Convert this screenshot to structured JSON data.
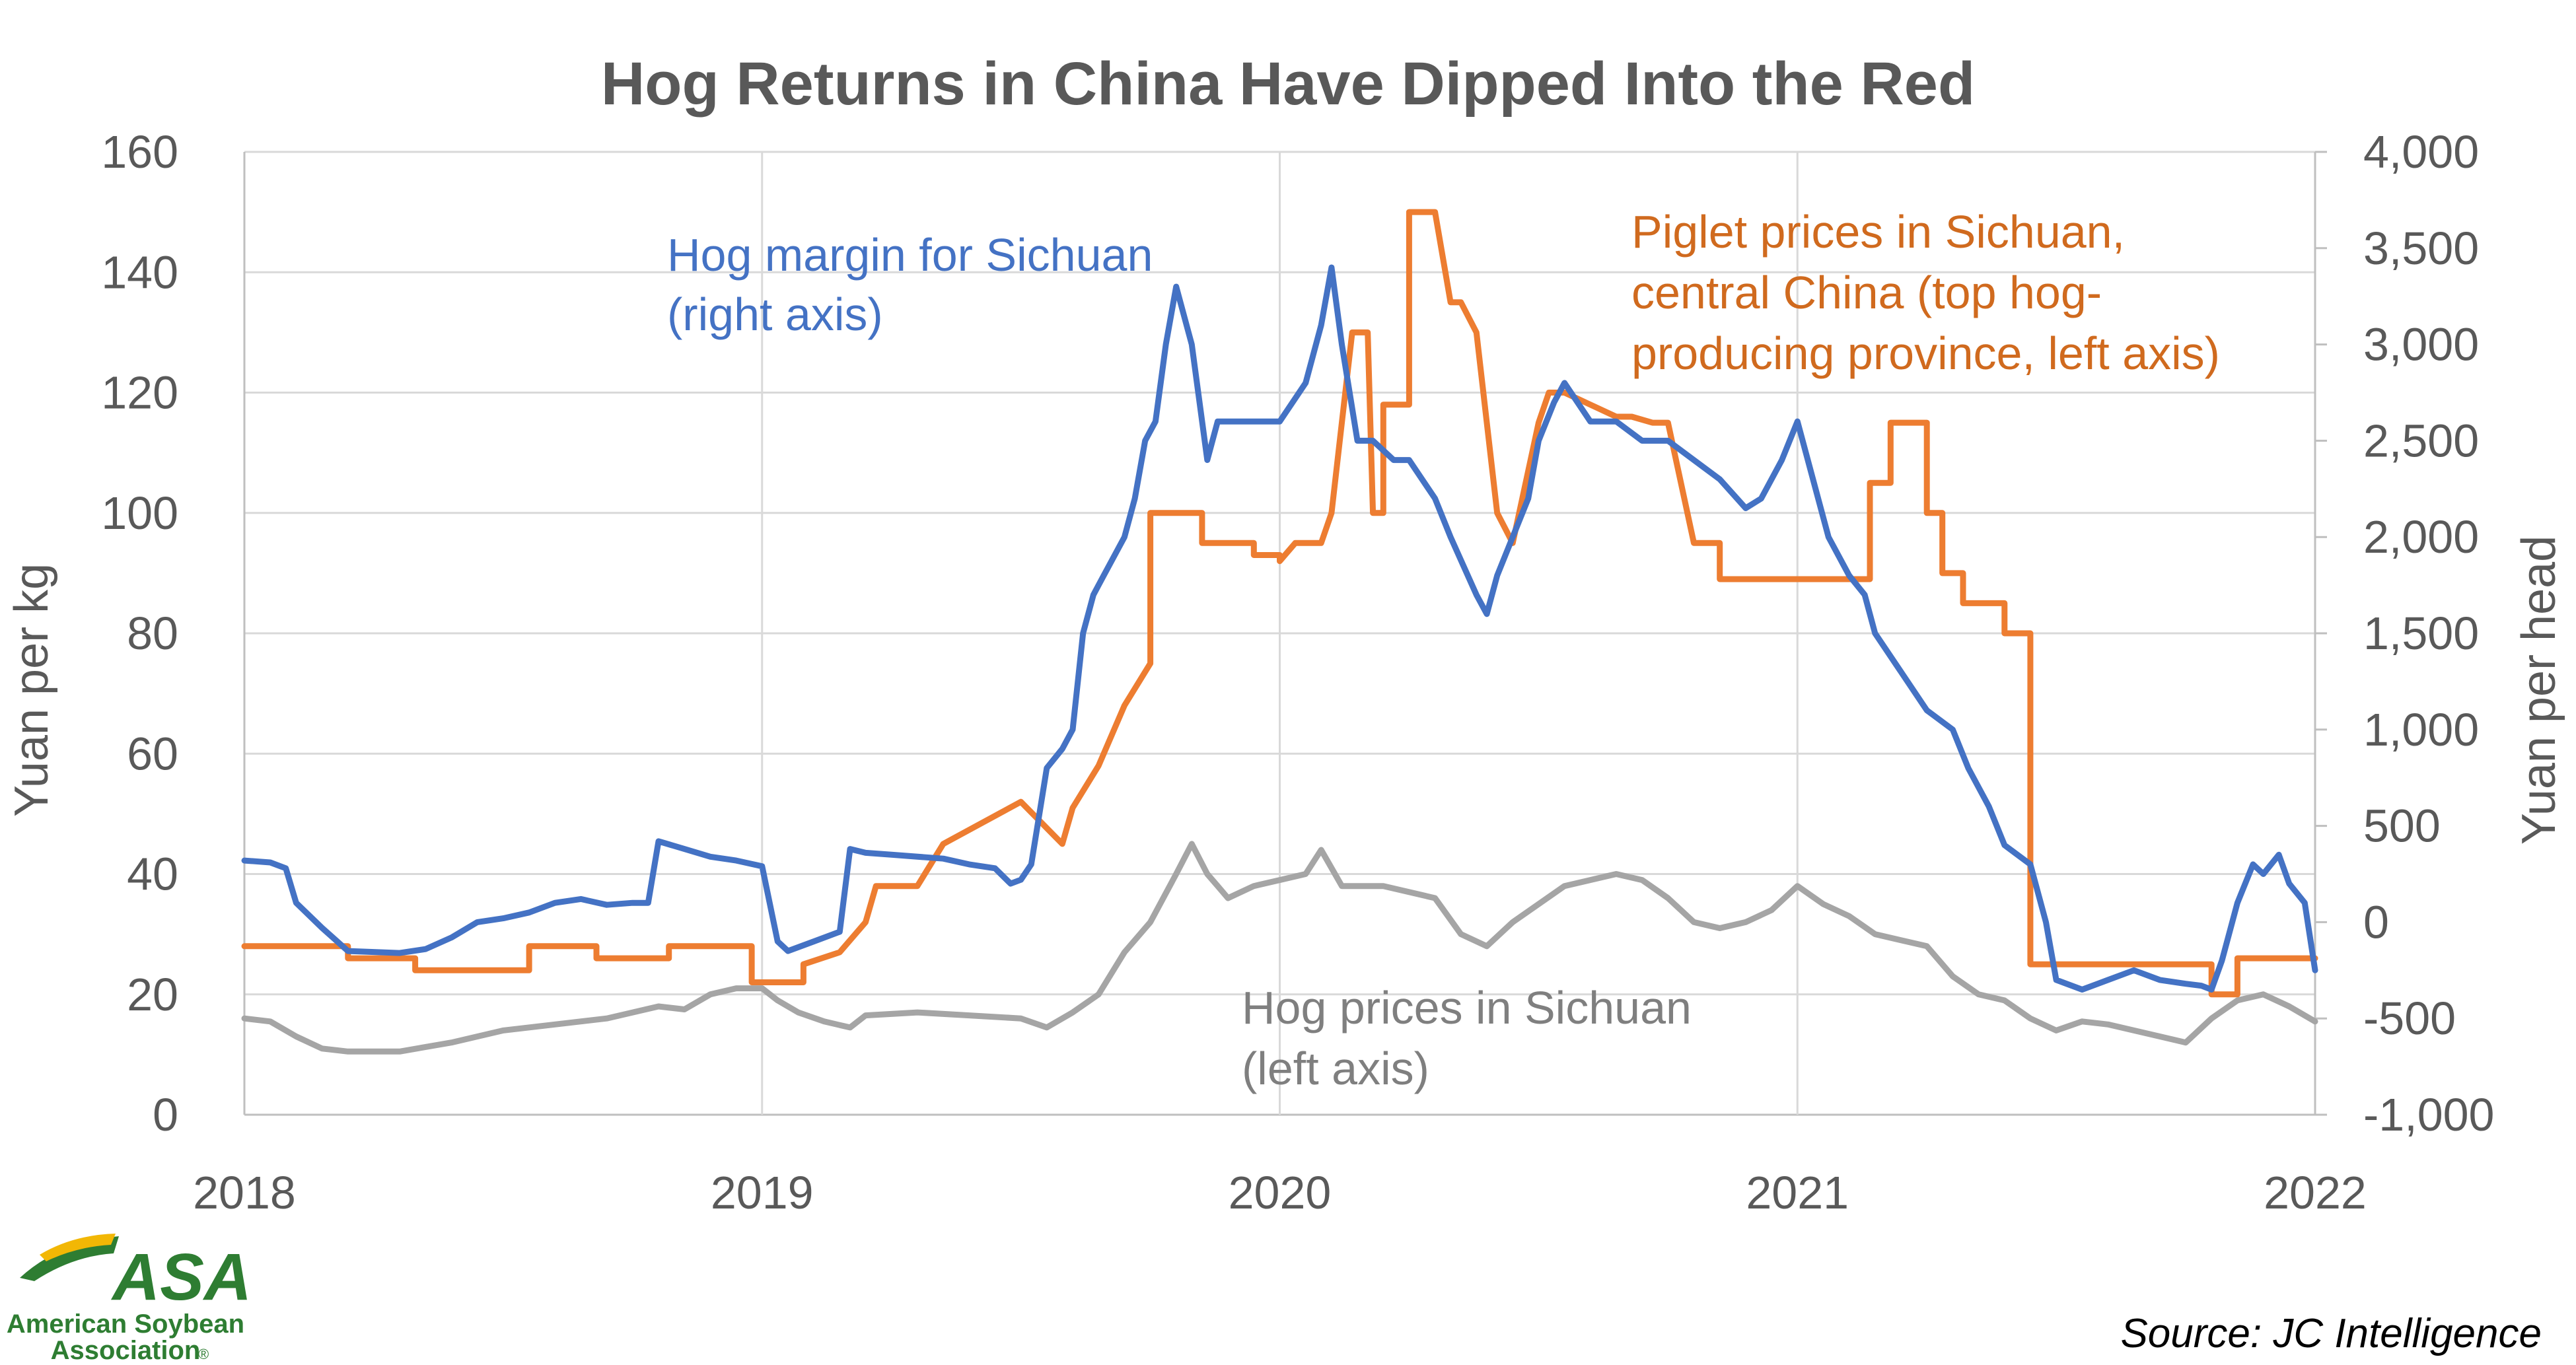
{
  "chart_data": {
    "type": "line",
    "title": "Hog Returns in China Have Dipped Into the Red",
    "xlabel": "",
    "ylabel_left": "Yuan per kg",
    "ylabel_right": "Yuan per head",
    "xlim": [
      2018,
      2022
    ],
    "ylim_left": [
      0,
      160
    ],
    "ylim_right": [
      -1000,
      4000
    ],
    "x_ticks": [
      "2018",
      "2019",
      "2020",
      "2021",
      "2022"
    ],
    "y_ticks_left": [
      "0",
      "20",
      "40",
      "60",
      "80",
      "100",
      "120",
      "140",
      "160"
    ],
    "y_ticks_right": [
      "-1,000",
      "-500",
      "0",
      "500",
      "1,000",
      "1,500",
      "2,000",
      "2,500",
      "3,000",
      "3,500",
      "4,000"
    ],
    "grid": true,
    "series": [
      {
        "name": "Hog prices in Sichuan (left axis)",
        "axis": "left",
        "color": "#A5A5A5",
        "x": [
          2018.0,
          2018.05,
          2018.1,
          2018.15,
          2018.2,
          2018.3,
          2018.4,
          2018.5,
          2018.6,
          2018.7,
          2018.75,
          2018.8,
          2018.85,
          2018.9,
          2018.95,
          2019.0,
          2019.03,
          2019.07,
          2019.12,
          2019.17,
          2019.2,
          2019.3,
          2019.4,
          2019.5,
          2019.55,
          2019.6,
          2019.65,
          2019.7,
          2019.75,
          2019.8,
          2019.83,
          2019.86,
          2019.88,
          2019.9,
          2019.95,
          2020.0,
          2020.05,
          2020.08,
          2020.1,
          2020.12,
          2020.15,
          2020.2,
          2020.3,
          2020.35,
          2020.4,
          2020.45,
          2020.5,
          2020.55,
          2020.6,
          2020.65,
          2020.7,
          2020.75,
          2020.8,
          2020.85,
          2020.9,
          2020.95,
          2021.0,
          2021.05,
          2021.1,
          2021.15,
          2021.2,
          2021.25,
          2021.3,
          2021.35,
          2021.4,
          2021.45,
          2021.5,
          2021.55,
          2021.6,
          2021.65,
          2021.7,
          2021.75,
          2021.8,
          2021.85,
          2021.9,
          2021.95,
          2022.0
        ],
        "values": [
          16,
          15.5,
          13,
          11,
          10.5,
          10.5,
          12,
          14,
          15,
          16,
          17,
          18,
          17.5,
          20,
          21,
          21,
          19,
          17,
          15.5,
          14.5,
          16.5,
          17,
          16.5,
          16,
          14.5,
          17,
          20,
          27,
          32,
          40,
          45,
          40,
          38,
          36,
          38,
          39,
          40,
          44,
          41,
          38,
          38,
          38,
          36,
          30,
          28,
          32,
          35,
          38,
          39,
          40,
          39,
          36,
          32,
          31,
          32,
          34,
          38,
          35,
          33,
          30,
          29,
          28,
          23,
          20,
          19,
          16,
          14,
          15.5,
          15,
          14,
          13,
          12,
          16,
          19,
          20,
          18,
          15.5
        ]
      },
      {
        "name": "Piglet prices in Sichuan, central China (top hog-producing province, left axis)",
        "axis": "left",
        "color": "#ED7D31",
        "x": [
          2018.0,
          2018.2,
          2018.2,
          2018.33,
          2018.33,
          2018.55,
          2018.55,
          2018.68,
          2018.68,
          2018.82,
          2018.82,
          2018.98,
          2018.98,
          2019.08,
          2019.08,
          2019.15,
          2019.2,
          2019.22,
          2019.3,
          2019.35,
          2019.35,
          2019.5,
          2019.5,
          2019.58,
          2019.58,
          2019.6,
          2019.6,
          2019.65,
          2019.65,
          2019.7,
          2019.75,
          2019.75,
          2019.85,
          2019.85,
          2019.95,
          2019.95,
          2020.0,
          2020.0,
          2020.03,
          2020.05,
          2020.08,
          2020.1,
          2020.12,
          2020.14,
          2020.17,
          2020.18,
          2020.2,
          2020.2,
          2020.25,
          2020.25,
          2020.3,
          2020.33,
          2020.35,
          2020.38,
          2020.42,
          2020.45,
          2020.5,
          2020.52,
          2020.55,
          2020.65,
          2020.68,
          2020.72,
          2020.75,
          2020.8,
          2020.85,
          2020.85,
          2021.0,
          2021.0,
          2021.12,
          2021.12,
          2021.14,
          2021.14,
          2021.18,
          2021.18,
          2021.25,
          2021.25,
          2021.28,
          2021.28,
          2021.32,
          2021.32,
          2021.4,
          2021.4,
          2021.45,
          2021.45,
          2021.8,
          2021.8,
          2021.85,
          2021.85,
          2022.0
        ],
        "values": [
          28,
          28,
          26,
          26,
          24,
          24,
          28,
          28,
          26,
          26,
          28,
          28,
          22,
          22,
          25,
          27,
          32,
          38,
          38,
          45,
          45,
          52,
          52,
          45,
          45,
          51,
          51,
          58,
          58,
          68,
          75,
          100,
          100,
          95,
          95,
          93,
          93,
          92,
          95,
          95,
          95,
          100,
          115,
          130,
          130,
          100,
          100,
          118,
          118,
          150,
          150,
          135,
          135,
          130,
          100,
          95,
          115,
          120,
          120,
          116,
          116,
          115,
          115,
          95,
          95,
          89,
          89,
          89,
          89,
          89,
          89,
          105,
          105,
          115,
          115,
          100,
          100,
          90,
          90,
          85,
          85,
          80,
          80,
          25,
          25,
          20,
          20,
          26,
          26
        ]
      },
      {
        "name": "Hog margin for Sichuan (right axis)",
        "axis": "right",
        "color": "#4472C4",
        "x": [
          2018.0,
          2018.05,
          2018.08,
          2018.1,
          2018.15,
          2018.2,
          2018.3,
          2018.35,
          2018.4,
          2018.45,
          2018.5,
          2018.55,
          2018.6,
          2018.65,
          2018.7,
          2018.75,
          2018.78,
          2018.8,
          2018.85,
          2018.9,
          2018.95,
          2019.0,
          2019.03,
          2019.05,
          2019.1,
          2019.15,
          2019.17,
          2019.2,
          2019.25,
          2019.35,
          2019.4,
          2019.45,
          2019.48,
          2019.5,
          2019.52,
          2019.55,
          2019.58,
          2019.6,
          2019.62,
          2019.64,
          2019.66,
          2019.68,
          2019.7,
          2019.72,
          2019.74,
          2019.76,
          2019.78,
          2019.8,
          2019.83,
          2019.86,
          2019.88,
          2019.9,
          2019.92,
          2019.95,
          2020.0,
          2020.05,
          2020.08,
          2020.1,
          2020.12,
          2020.15,
          2020.18,
          2020.22,
          2020.25,
          2020.3,
          2020.33,
          2020.38,
          2020.4,
          2020.42,
          2020.45,
          2020.48,
          2020.5,
          2020.53,
          2020.55,
          2020.6,
          2020.65,
          2020.7,
          2020.75,
          2020.8,
          2020.85,
          2020.9,
          2020.93,
          2020.97,
          2021.0,
          2021.03,
          2021.06,
          2021.1,
          2021.13,
          2021.15,
          2021.2,
          2021.25,
          2021.3,
          2021.33,
          2021.37,
          2021.4,
          2021.45,
          2021.48,
          2021.5,
          2021.55,
          2021.6,
          2021.65,
          2021.7,
          2021.75,
          2021.78,
          2021.8,
          2021.82,
          2021.85,
          2021.88,
          2021.9,
          2021.93,
          2021.95,
          2021.98,
          2022.0
        ],
        "values": [
          320,
          310,
          280,
          100,
          -30,
          -150,
          -160,
          -140,
          -80,
          0,
          20,
          50,
          100,
          120,
          90,
          100,
          100,
          420,
          380,
          340,
          320,
          290,
          -100,
          -150,
          -100,
          -50,
          380,
          360,
          350,
          330,
          300,
          280,
          200,
          220,
          300,
          800,
          900,
          1000,
          1500,
          1700,
          1800,
          1900,
          2000,
          2200,
          2500,
          2600,
          3000,
          3300,
          3000,
          2400,
          2600,
          2600,
          2600,
          2600,
          2600,
          2800,
          3100,
          3400,
          3000,
          2500,
          2500,
          2400,
          2400,
          2200,
          2000,
          1700,
          1600,
          1800,
          2000,
          2200,
          2500,
          2700,
          2800,
          2600,
          2600,
          2500,
          2500,
          2400,
          2300,
          2150,
          2200,
          2400,
          2600,
          2300,
          2000,
          1800,
          1700,
          1500,
          1300,
          1100,
          1000,
          800,
          600,
          400,
          300,
          0,
          -300,
          -350,
          -300,
          -250,
          -300,
          -320,
          -330,
          -350,
          -200,
          100,
          300,
          250,
          350,
          200,
          100,
          -250
        ]
      }
    ],
    "annotations": {
      "hog_margin": [
        "Hog margin for Sichuan",
        "(right axis)"
      ],
      "piglet": [
        "Piglet prices in Sichuan,",
        "central China (top hog-",
        "producing province, left axis)"
      ],
      "hog_prices": [
        "Hog prices in Sichuan",
        "(left axis)"
      ]
    }
  },
  "source": "Source: JC Intelligence",
  "logo": {
    "name": "ASA",
    "line1": "American Soybean",
    "line2": "Association",
    "mark": "®",
    "colors": {
      "green": "#2E7D32",
      "yellow": "#F2B705"
    }
  },
  "colors": {
    "grid": "#D9D9D9",
    "axis": "#BFBFBF",
    "text": "#595959",
    "hog_margin": "#4472C4",
    "piglet": "#ED7D31",
    "hog_prices": "#A5A5A5"
  }
}
